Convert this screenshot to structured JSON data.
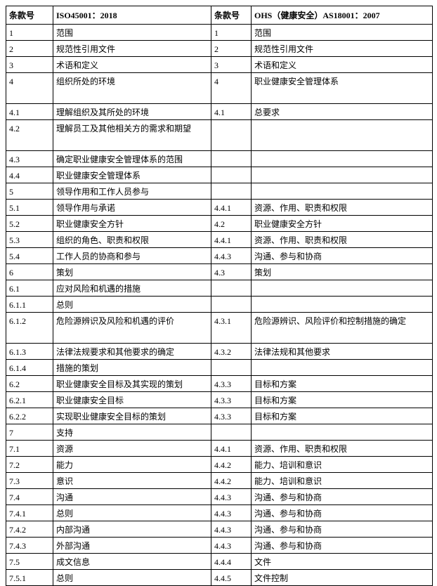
{
  "table": {
    "header": [
      "条款号",
      "ISO45001：2018",
      "条款号",
      "OHS（健康安全）AS18001：2007"
    ],
    "rows": [
      [
        "1",
        "范围",
        "1",
        "范围"
      ],
      [
        "2",
        "规范性引用文件",
        "2",
        "规范性引用文件"
      ],
      [
        "3",
        "术语和定义",
        "3",
        "术语和定义"
      ],
      [
        "4",
        "组织所处的环境",
        "4",
        "职业健康安全管理体系"
      ],
      [
        "4.1",
        "理解组织及其所处的环境",
        "4.1",
        "总要求"
      ],
      [
        "4.2",
        "理解员工及其他相关方的需求和期望",
        null,
        null
      ],
      [
        "4.3",
        "确定职业健康安全管理体系的范围",
        null,
        null
      ],
      [
        "4.4",
        "职业健康安全管理体系",
        null,
        null
      ],
      [
        "5",
        "领导作用和工作人员参与",
        null,
        null
      ],
      [
        "5.1",
        "领导作用与承诺",
        "4.4.1",
        "资源、作用、职责和权限"
      ],
      [
        "5.2",
        "职业健康安全方针",
        "4.2",
        "职业健康安全方针"
      ],
      [
        "5.3",
        "组织的角色、职责和权限",
        "4.4.1",
        "资源、作用、职责和权限"
      ],
      [
        "5.4",
        "工作人员的协商和参与",
        "4.4.3",
        "沟通、参与和协商"
      ],
      [
        "6",
        "策划",
        "4.3",
        "策划"
      ],
      [
        "6.1",
        "应对风险和机遇的措施",
        null,
        null
      ],
      [
        "6.1.1",
        "总则",
        null,
        null
      ],
      [
        "6.1.2",
        "危险源辨识及风险和机遇的评价",
        "4.3.1",
        "危险源辨识、风险评价和控制措施的确定"
      ],
      [
        "6.1.3",
        "法律法规要求和其他要求的确定",
        "4.3.2",
        "法律法规和其他要求"
      ],
      [
        "6.1.4",
        "措施的策划",
        null,
        null
      ],
      [
        "6.2",
        "职业健康安全目标及其实现的策划",
        "4.3.3",
        "目标和方案"
      ],
      [
        "6.2.1",
        "职业健康安全目标",
        "4.3.3",
        "目标和方案"
      ],
      [
        "6.2.2",
        "实现职业健康安全目标的策划",
        "4.3.3",
        "目标和方案"
      ],
      [
        "7",
        "支持",
        null,
        null
      ],
      [
        "7.1",
        "资源",
        "4.4.1",
        "资源、作用、职责和权限"
      ],
      [
        "7.2",
        "能力",
        "4.4.2",
        "能力、培训和意识"
      ],
      [
        "7.3",
        "意识",
        "4.4.2",
        "能力、培训和意识"
      ],
      [
        "7.4",
        "沟通",
        "4.4.3",
        "沟通、参与和协商"
      ],
      [
        "7.4.1",
        "总则",
        "4.4.3",
        "沟通、参与和协商"
      ],
      [
        "7.4.2",
        "内部沟通",
        "4.4.3",
        "沟通、参与和协商"
      ],
      [
        "7.4.3",
        "外部沟通",
        "4.4.3",
        "沟通、参与和协商"
      ],
      [
        "7.5",
        "成文信息",
        "4.4.4",
        "文件"
      ],
      [
        "7.5.1",
        "总则",
        "4.4.5",
        "文件控制"
      ]
    ]
  }
}
